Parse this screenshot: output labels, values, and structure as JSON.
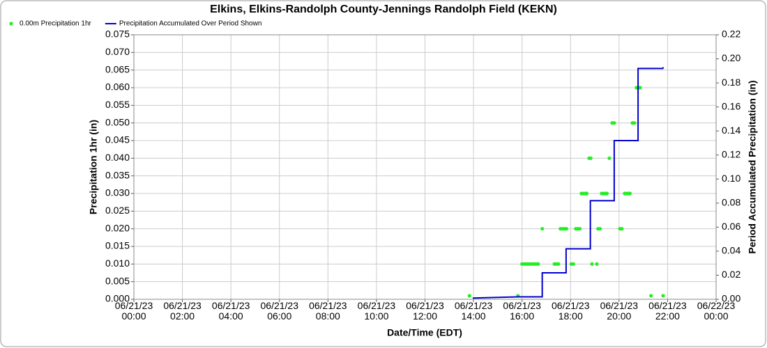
{
  "chart_data": {
    "type": "combo",
    "title": "Elkins, Elkins-Randolph County-Jennings Randolph Field (KEKN)",
    "x_label": "Date/Time (EDT)",
    "y_label": "Precipitation 1hr (in)",
    "y2_label": "Period Accumulated Precipitation (in)",
    "xlim": [
      "06/21/23 00:00",
      "06/22/23 00:00"
    ],
    "xticks": [
      "06/21/23 00:00",
      "06/21/23 02:00",
      "06/21/23 04:00",
      "06/21/23 06:00",
      "06/21/23 08:00",
      "06/21/23 10:00",
      "06/21/23 12:00",
      "06/21/23 14:00",
      "06/21/23 16:00",
      "06/21/23 18:00",
      "06/21/23 20:00",
      "06/21/23 22:00",
      "06/22/23 00:00"
    ],
    "ylim": [
      0,
      0.075
    ],
    "yticks": [
      {
        "value": 0,
        "label": "0.000"
      },
      {
        "value": 0.005,
        "label": "0.005"
      },
      {
        "value": 0.01,
        "label": "0.010"
      },
      {
        "value": 0.015,
        "label": "0.015"
      },
      {
        "value": 0.02,
        "label": "0.020"
      },
      {
        "value": 0.025,
        "label": "0.025"
      },
      {
        "value": 0.03,
        "label": "0.030"
      },
      {
        "value": 0.035,
        "label": "0.035"
      },
      {
        "value": 0.04,
        "label": "0.040"
      },
      {
        "value": 0.045,
        "label": "0.045"
      },
      {
        "value": 0.05,
        "label": "0.050"
      },
      {
        "value": 0.055,
        "label": "0.055"
      },
      {
        "value": 0.06,
        "label": "0.060"
      },
      {
        "value": 0.065,
        "label": "0.065"
      },
      {
        "value": 0.07,
        "label": "0.070"
      },
      {
        "value": 0.075,
        "label": "0.075"
      }
    ],
    "y2lim": [
      0,
      0.22
    ],
    "y2ticks": [
      {
        "value": 0,
        "label": "0.00"
      },
      {
        "value": 0.02,
        "label": "0.02"
      },
      {
        "value": 0.04,
        "label": "0.04"
      },
      {
        "value": 0.06,
        "label": "0.06"
      },
      {
        "value": 0.08,
        "label": "0.08"
      },
      {
        "value": 0.1,
        "label": "0.10"
      },
      {
        "value": 0.12,
        "label": "0.12"
      },
      {
        "value": 0.14,
        "label": "0.14"
      },
      {
        "value": 0.16,
        "label": "0.16"
      },
      {
        "value": 0.18,
        "label": "0.18"
      },
      {
        "value": 0.2,
        "label": "0.20"
      },
      {
        "value": 0.22,
        "label": "0.22"
      }
    ],
    "grid": true,
    "legend": "top-left",
    "series": [
      {
        "name": "0.00m Precipitation 1hr",
        "type": "scatter",
        "color": "#22ee22",
        "x": [
          "06/21/23 13:50",
          "06/21/23 15:50",
          "06/21/23 16:00",
          "06/21/23 16:05",
          "06/21/23 16:10",
          "06/21/23 16:15",
          "06/21/23 16:20",
          "06/21/23 16:25",
          "06/21/23 16:30",
          "06/21/23 16:35",
          "06/21/23 16:40",
          "06/21/23 16:50",
          "06/21/23 17:20",
          "06/21/23 17:25",
          "06/21/23 17:30",
          "06/21/23 17:35",
          "06/21/23 17:40",
          "06/21/23 17:45",
          "06/21/23 17:50",
          "06/21/23 18:02",
          "06/21/23 18:07",
          "06/21/23 18:13",
          "06/21/23 18:18",
          "06/21/23 18:23",
          "06/21/23 18:27",
          "06/21/23 18:32",
          "06/21/23 18:37",
          "06/21/23 18:40",
          "06/21/23 18:46",
          "06/21/23 18:50",
          "06/21/23 18:53",
          "06/21/23 19:05",
          "06/21/23 19:08",
          "06/21/23 19:13",
          "06/21/23 19:17",
          "06/21/23 19:22",
          "06/21/23 19:27",
          "06/21/23 19:30",
          "06/21/23 19:36",
          "06/21/23 19:43",
          "06/21/23 19:48",
          "06/21/23 20:02",
          "06/21/23 20:07",
          "06/21/23 20:14",
          "06/21/23 20:19",
          "06/21/23 20:24",
          "06/21/23 20:27",
          "06/21/23 20:33",
          "06/21/23 20:38",
          "06/21/23 20:43",
          "06/21/23 20:48",
          "06/21/23 20:52",
          "06/21/23 21:19",
          "06/21/23 21:49"
        ],
        "values": [
          0.001,
          0.001,
          0.01,
          0.01,
          0.01,
          0.01,
          0.01,
          0.01,
          0.01,
          0.01,
          0.01,
          0.02,
          0.01,
          0.01,
          0.01,
          0.02,
          0.02,
          0.02,
          0.02,
          0.01,
          0.01,
          0.02,
          0.02,
          0.02,
          0.03,
          0.03,
          0.03,
          0.03,
          0.04,
          0.04,
          0.01,
          0.01,
          0.02,
          0.02,
          0.03,
          0.03,
          0.03,
          0.03,
          0.04,
          0.05,
          0.05,
          0.02,
          0.02,
          0.03,
          0.03,
          0.03,
          0.03,
          0.05,
          0.05,
          0.06,
          0.06,
          0.06,
          0.001,
          0.001
        ]
      },
      {
        "name": "Precipitation Accumulated Over Period Shown",
        "type": "line",
        "color": "#0000cc",
        "axis": "y2",
        "x": [
          "06/21/23 13:58",
          "06/21/23 15:50",
          "06/21/23 16:50",
          "06/21/23 16:50",
          "06/21/23 17:49",
          "06/21/23 17:49",
          "06/21/23 18:49",
          "06/21/23 18:49",
          "06/21/23 19:48",
          "06/21/23 19:48",
          "06/21/23 20:47",
          "06/21/23 20:47",
          "06/21/23 21:48",
          "06/21/23 21:50"
        ],
        "values": [
          0.001,
          0.002,
          0.002,
          0.022,
          0.022,
          0.042,
          0.042,
          0.082,
          0.082,
          0.132,
          0.132,
          0.192,
          0.192,
          0.193
        ]
      }
    ]
  }
}
